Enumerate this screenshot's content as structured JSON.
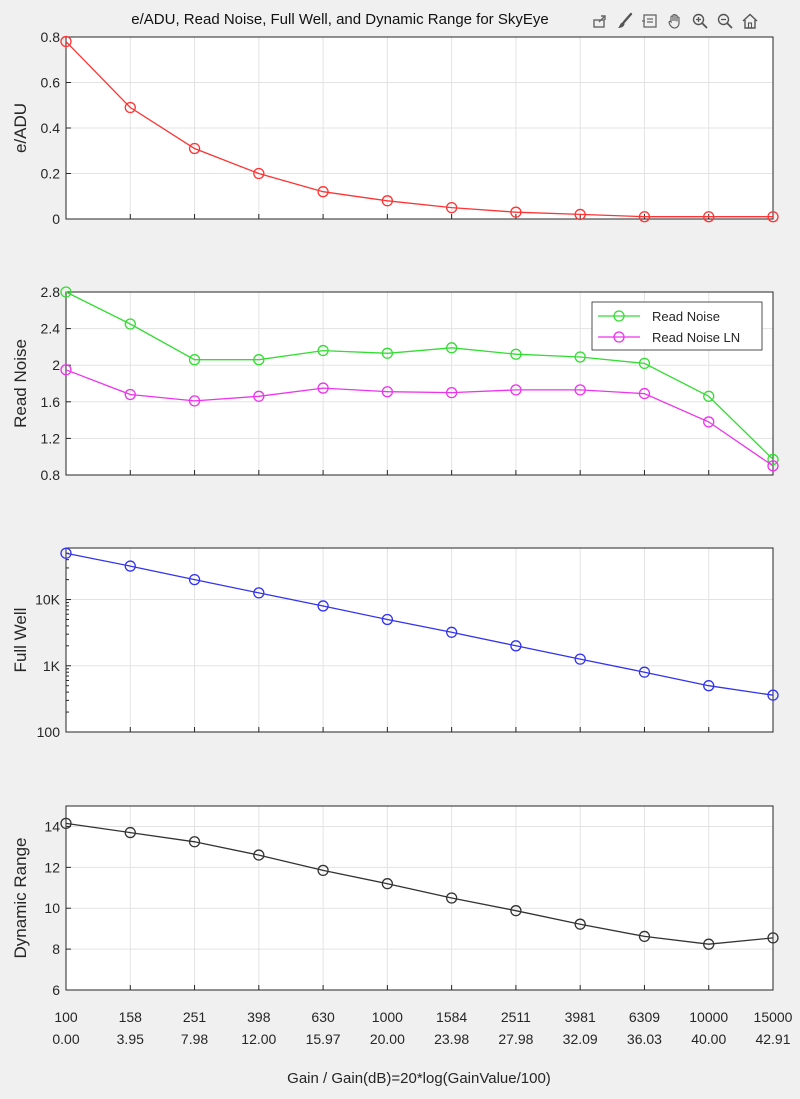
{
  "title": "e/ADU, Read Noise, Full Well, and Dynamic Range for SkyEye",
  "toolbar": {
    "icons": [
      "export-icon",
      "brush-icon",
      "datatip-icon",
      "pan-icon",
      "zoom-in-icon",
      "zoom-out-icon",
      "home-icon"
    ]
  },
  "colors": {
    "eadu": "#ff3333",
    "read_noise": "#33dd33",
    "read_noise_ln": "#ee33ee",
    "full_well": "#3333ee",
    "dynamic_range": "#333333",
    "grid": "#e3e3e3",
    "axes": "#262626"
  },
  "chart_data": [
    {
      "type": "line",
      "ylabel": "e/ADU",
      "ylim": [
        0,
        0.8
      ],
      "yticks": [
        0,
        0.2,
        0.4,
        0.6,
        0.8
      ],
      "ytick_labels": [
        "0",
        "0.2",
        "0.4",
        "0.6",
        "0.8"
      ],
      "grid": true,
      "series": [
        {
          "values": [
            0.78,
            0.49,
            0.31,
            0.2,
            0.12,
            0.08,
            0.05,
            0.03,
            0.02,
            0.01,
            0.01,
            0.01
          ]
        }
      ]
    },
    {
      "type": "line",
      "ylabel": "Read Noise",
      "ylim": [
        0.8,
        2.8
      ],
      "yticks": [
        0.8,
        1.2,
        1.6,
        2.0,
        2.4,
        2.8
      ],
      "ytick_labels": [
        "0.8",
        "1.2",
        "1.6",
        "2",
        "2.4",
        "2.8"
      ],
      "grid": true,
      "legend": "top-right",
      "series": [
        {
          "name": "Read Noise",
          "values": [
            2.8,
            2.45,
            2.06,
            2.06,
            2.16,
            2.13,
            2.19,
            2.12,
            2.09,
            2.02,
            1.66,
            0.97
          ]
        },
        {
          "name": "Read Noise LN",
          "values": [
            1.95,
            1.68,
            1.61,
            1.66,
            1.75,
            1.71,
            1.7,
            1.73,
            1.73,
            1.69,
            1.38,
            0.9
          ]
        }
      ]
    },
    {
      "type": "line",
      "ylabel": "Full Well",
      "yscale": "log",
      "ylim": [
        100,
        60000
      ],
      "yticks": [
        100,
        1000,
        10000
      ],
      "ytick_labels": [
        "100",
        "1K",
        "10K"
      ],
      "grid": true,
      "series": [
        {
          "values": [
            50000,
            32000,
            20000,
            12600,
            8000,
            5000,
            3200,
            2000,
            1260,
            800,
            500,
            360
          ]
        }
      ]
    },
    {
      "type": "line",
      "ylabel": "Dynamic Range",
      "ylim": [
        6,
        15
      ],
      "yticks": [
        6,
        8,
        10,
        12,
        14
      ],
      "ytick_labels": [
        "6",
        "8",
        "10",
        "12",
        "14"
      ],
      "grid": true,
      "xlabel": "Gain / Gain(dB)=20*log(GainValue/100)",
      "x_labels_gain": [
        "100",
        "158",
        "251",
        "398",
        "630",
        "1000",
        "1584",
        "2511",
        "3981",
        "6309",
        "10000",
        "15000"
      ],
      "x_labels_db": [
        "0.00",
        "3.95",
        "7.98",
        "12.00",
        "15.97",
        "20.00",
        "23.98",
        "27.98",
        "32.09",
        "36.03",
        "40.00",
        "42.91"
      ],
      "series": [
        {
          "values": [
            14.15,
            13.7,
            13.25,
            12.6,
            11.85,
            11.2,
            10.5,
            9.88,
            9.22,
            8.62,
            8.24,
            8.55
          ]
        }
      ]
    }
  ]
}
